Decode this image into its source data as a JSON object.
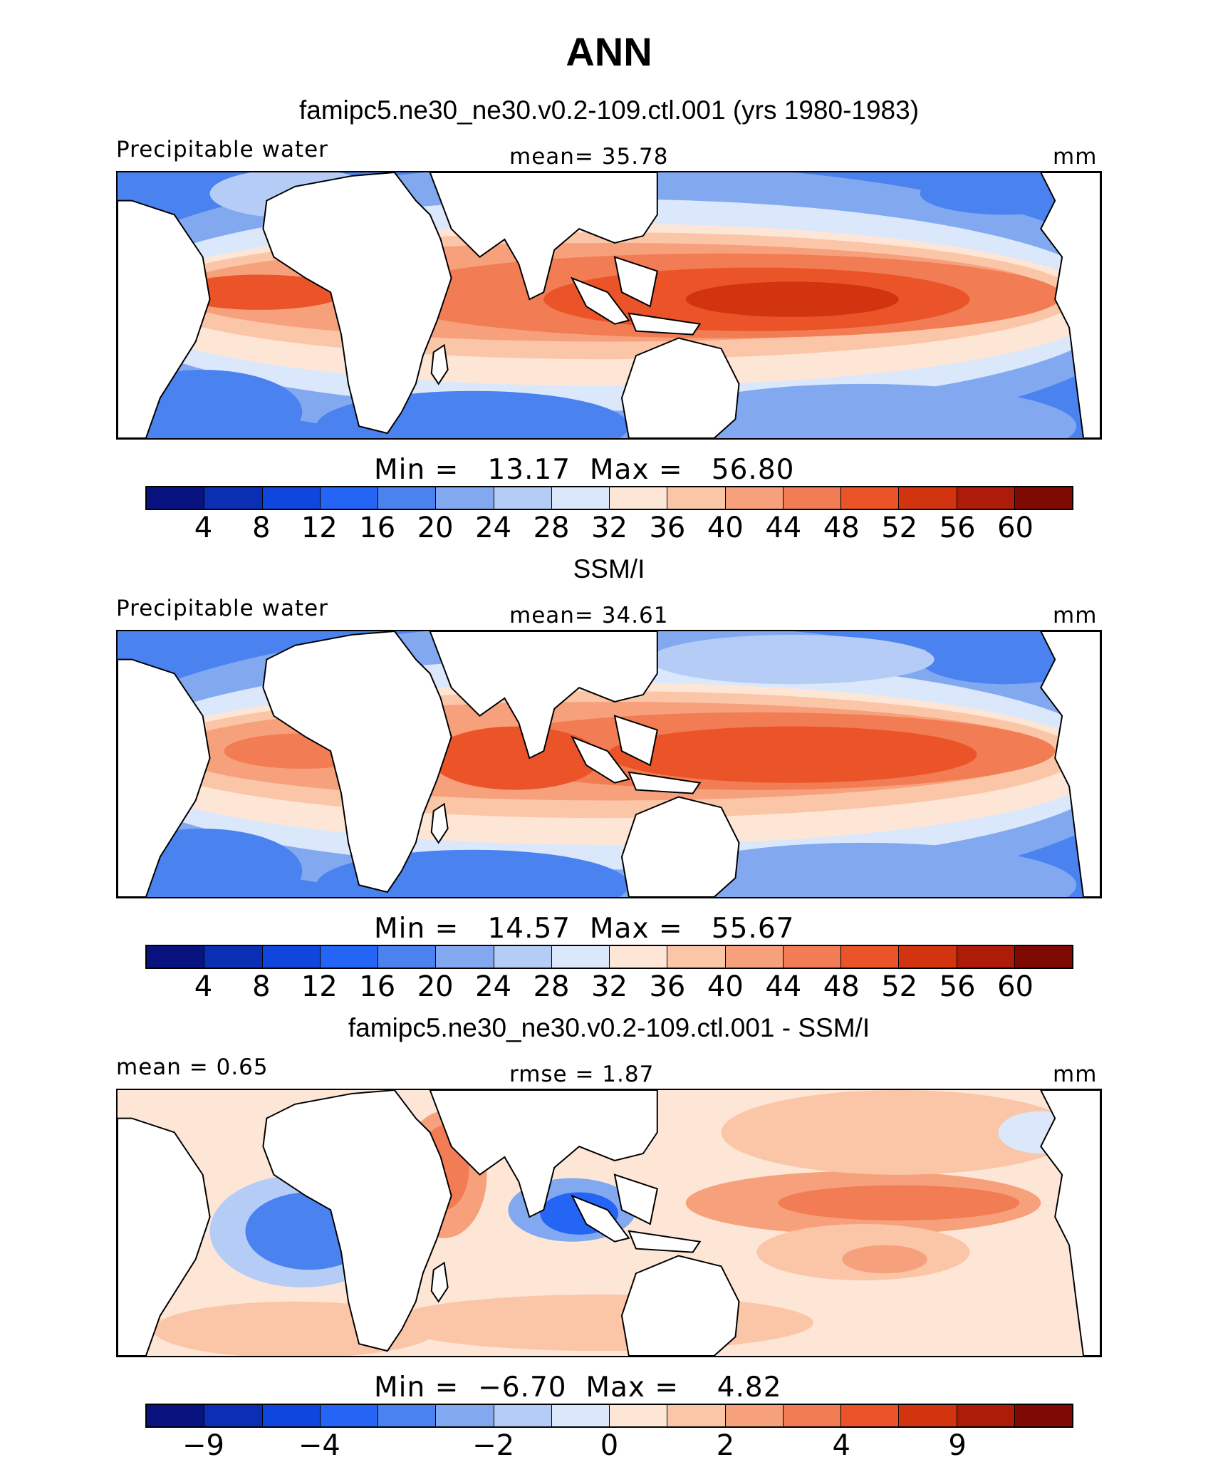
{
  "title": "ANN",
  "colors": {
    "palette": [
      "#08137f",
      "#0a2fb4",
      "#0f47de",
      "#2465f5",
      "#4a82f0",
      "#82a9f0",
      "#b5ccf6",
      "#dbe8fb",
      "#fde6d6",
      "#fbc6a8",
      "#f7a17c",
      "#f27c53",
      "#ea5428",
      "#d23410",
      "#ac1c08",
      "#7f0a04"
    ],
    "land": "#ffffff",
    "coast": "#000000"
  },
  "panels": [
    {
      "title": "famipc5.ne30_ne30.v0.2-109.ctl.001 (yrs 1980-1983)",
      "left_label": "Precipitable water",
      "center_label": "mean=   35.78",
      "right_label": "mm",
      "minmax": "Min =   13.17  Max =   56.80",
      "ticks": [
        "4",
        "8",
        "12",
        "16",
        "20",
        "24",
        "28",
        "32",
        "36",
        "40",
        "44",
        "48",
        "52",
        "56",
        "60"
      ],
      "field": "model"
    },
    {
      "title": "SSM/I",
      "left_label": "Precipitable water",
      "center_label": "mean=   34.61",
      "right_label": "mm",
      "minmax": "Min =   14.57  Max =   55.67",
      "ticks": [
        "4",
        "8",
        "12",
        "16",
        "20",
        "24",
        "28",
        "32",
        "36",
        "40",
        "44",
        "48",
        "52",
        "56",
        "60"
      ],
      "field": "obs"
    },
    {
      "title": "famipc5.ne30_ne30.v0.2-109.ctl.001 - SSM/I",
      "left_label": "mean =    0.65",
      "center_label": "rmse =    1.87",
      "right_label": "mm",
      "minmax": "Min =  −6.70  Max =    4.82",
      "ticks": [
        "−9",
        "−4",
        "−2",
        "0",
        "2",
        "4",
        "9"
      ],
      "field": "diff"
    }
  ]
}
